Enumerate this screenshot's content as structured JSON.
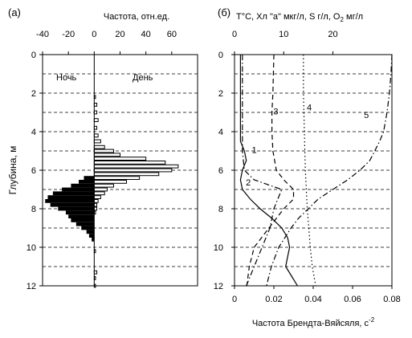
{
  "panel_a": {
    "label": "(а)",
    "top_label": "Частота, отн.ед.",
    "ylabel": "Глубина, м",
    "night_label": "Ночь",
    "day_label": "День"
  },
  "panel_b": {
    "label": "(б)",
    "top_label": "T°C, Хл \"а\" мкг/л, S г/л, O",
    "top_label_sub": "2",
    "top_label_end": " мг/л",
    "bottom_label": "Частота Брендта-Вяйсяля, с",
    "bottom_label_sup": "-2"
  },
  "chart_data": [
    {
      "type": "bar",
      "title": "",
      "xlabel": "Частота, отн.ед.",
      "ylabel": "Глубина, м",
      "xlim": [
        -40,
        80
      ],
      "ylim": [
        12,
        0
      ],
      "xticks": [
        -40,
        -20,
        0,
        20,
        40,
        60
      ],
      "yticks": [
        0,
        2,
        4,
        6,
        8,
        10,
        12
      ],
      "grid_y": true,
      "night": {
        "name": "Ночь",
        "depth": [
          6.4,
          6.6,
          6.8,
          7.0,
          7.2,
          7.4,
          7.6,
          7.8,
          8.0,
          8.2,
          8.4,
          8.6,
          8.8,
          9.0,
          9.2,
          9.4,
          9.6
        ],
        "values": [
          -8,
          -12,
          -18,
          -25,
          -32,
          -36,
          -38,
          -34,
          -28,
          -22,
          -20,
          -18,
          -14,
          -10,
          -6,
          -4,
          -2
        ]
      },
      "day": {
        "name": "День",
        "depth": [
          2.2,
          2.6,
          3.0,
          3.4,
          3.8,
          4.2,
          4.5,
          4.8,
          5.0,
          5.2,
          5.4,
          5.6,
          5.8,
          6.0,
          6.2,
          6.4,
          6.6,
          6.8,
          7.0,
          7.2,
          7.4,
          7.6,
          7.8,
          8.0,
          8.2,
          10.2,
          11.3,
          11.6,
          12.0
        ],
        "values": [
          1,
          2,
          2,
          3,
          2,
          3,
          5,
          8,
          15,
          20,
          40,
          55,
          65,
          60,
          50,
          35,
          25,
          15,
          10,
          8,
          5,
          3,
          2,
          2,
          1,
          1,
          2,
          1,
          1
        ]
      }
    },
    {
      "type": "line",
      "title": "",
      "xlabel": "Частота Брендта-Вяйсяля, с-2",
      "ylabel": "",
      "top_axis_label": "T°C, Хл \"а\" мкг/л, S г/л, O2 мг/л",
      "xlim": [
        0,
        0.08
      ],
      "xticks": [
        0,
        0.02,
        0.04,
        0.06,
        0.08
      ],
      "top_xlim": [
        0,
        32
      ],
      "top_xticks": [
        0,
        10,
        20
      ],
      "ylim": [
        12,
        0
      ],
      "yticks": [
        0,
        2,
        4,
        6,
        8,
        10,
        12
      ],
      "grid_y": true,
      "series": [
        {
          "name": "1",
          "axis": "bottom",
          "dash": "solid",
          "depth": [
            0,
            4,
            4.5,
            5,
            5.5,
            6,
            6.5,
            7,
            7.5,
            8,
            8.5,
            9,
            9.5,
            10,
            10.5,
            11,
            11.5,
            12
          ],
          "x": [
            0.003,
            0.003,
            0.003,
            0.005,
            0.006,
            0.004,
            0.003,
            0.004,
            0.008,
            0.013,
            0.019,
            0.024,
            0.027,
            0.028,
            0.027,
            0.026,
            0.029,
            0.032
          ]
        },
        {
          "name": "2",
          "axis": "bottom",
          "dash": "dashdot",
          "depth": [
            0,
            5,
            6,
            6.5,
            7,
            7.5,
            8,
            8.5,
            9,
            9.5,
            10,
            10.5,
            11,
            11.5,
            12
          ],
          "x": [
            0.004,
            0.004,
            0.005,
            0.01,
            0.024,
            0.022,
            0.02,
            0.019,
            0.018,
            0.016,
            0.014,
            0.012,
            0.01,
            0.008,
            0.006
          ]
        },
        {
          "name": "3",
          "axis": "top",
          "dash": "dashed",
          "depth": [
            0,
            2,
            3,
            4,
            5,
            6,
            6.5,
            7,
            7.5,
            8,
            9,
            10,
            11,
            12
          ],
          "x": [
            8.0,
            7.8,
            7.6,
            7.6,
            7.8,
            8.5,
            10.0,
            12.0,
            12.0,
            10.0,
            7.0,
            4.0,
            3.0,
            2.5
          ]
        },
        {
          "name": "4",
          "axis": "top",
          "dash": "dotted",
          "depth": [
            0,
            1,
            2,
            3,
            4,
            5,
            6,
            7,
            8,
            9,
            10,
            11,
            12
          ],
          "x": [
            14.0,
            14.0,
            14.0,
            14.1,
            14.2,
            14.3,
            14.4,
            14.6,
            14.8,
            15.1,
            15.4,
            15.8,
            16.5
          ]
        },
        {
          "name": "5",
          "axis": "top",
          "dash": "dashdot",
          "depth": [
            0,
            1,
            2,
            3,
            4,
            4.5,
            5,
            5.5,
            6,
            6.5,
            7,
            7.5,
            8,
            8.5,
            9,
            10,
            11,
            12
          ],
          "x": [
            32.0,
            31.8,
            31.5,
            31.0,
            30.3,
            29.5,
            28.5,
            27.5,
            25.5,
            23.0,
            20.0,
            17.0,
            15.0,
            13.0,
            11.5,
            9.0,
            7.5,
            6.5
          ]
        }
      ]
    }
  ]
}
